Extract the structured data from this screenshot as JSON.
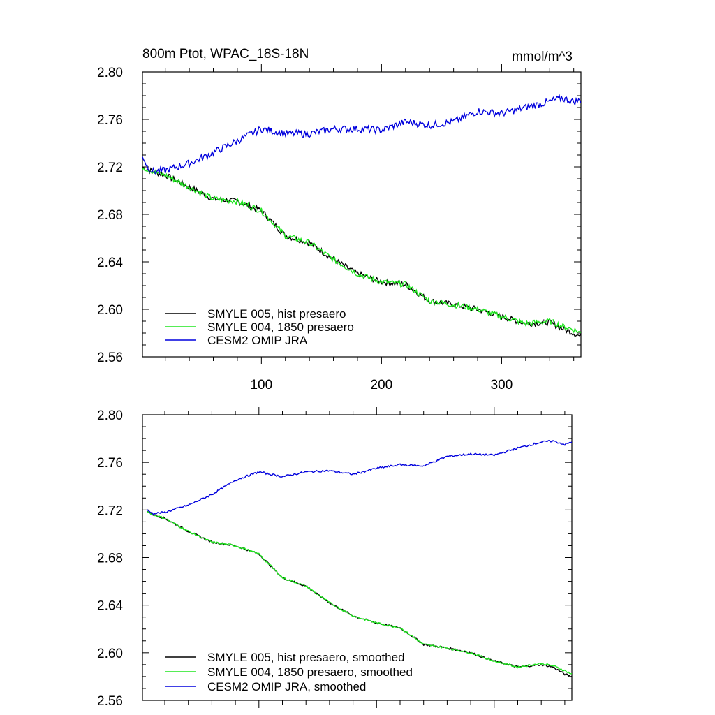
{
  "figure": {
    "title_left": "800m Ptot, WPAC_18S-18N",
    "title_right": "mmol/m^3"
  },
  "colors": {
    "SMYLE 005": "#000000",
    "SMYLE 004": "#1ee61e",
    "CESM2 OMIP": "#0000dd"
  },
  "chart_data": [
    {
      "type": "line",
      "panel": "top",
      "title": "800m Ptot, WPAC_18S-18N",
      "units": "mmol/m^3",
      "xlabel": "",
      "ylabel": "",
      "xlim": [
        1,
        366
      ],
      "ylim": [
        2.56,
        2.8
      ],
      "xticks": [
        100,
        200,
        300
      ],
      "xticklabels": [
        "100",
        "200",
        "300"
      ],
      "yticks": [
        2.56,
        2.6,
        2.64,
        2.68,
        2.72,
        2.76,
        2.8
      ],
      "yticklabels": [
        "2.56",
        "2.60",
        "2.64",
        "2.68",
        "2.72",
        "2.76",
        "2.80"
      ],
      "legend_position": "bottom-left",
      "x": [
        1,
        5,
        10,
        20,
        40,
        60,
        80,
        100,
        120,
        140,
        160,
        180,
        200,
        220,
        240,
        260,
        280,
        300,
        320,
        340,
        350,
        360,
        366
      ],
      "series": [
        {
          "name": "SMYLE 005, hist presaero",
          "color_key": "SMYLE 005",
          "noise": 0.0025,
          "values": [
            2.72,
            2.718,
            2.716,
            2.713,
            2.703,
            2.693,
            2.691,
            2.683,
            2.662,
            2.656,
            2.642,
            2.63,
            2.623,
            2.621,
            2.607,
            2.604,
            2.6,
            2.594,
            2.588,
            2.589,
            2.584,
            2.58,
            2.577
          ]
        },
        {
          "name": "SMYLE 004, 1850 presaero",
          "color_key": "SMYLE 004",
          "noise": 0.0025,
          "values": [
            2.72,
            2.718,
            2.716,
            2.713,
            2.703,
            2.693,
            2.691,
            2.683,
            2.662,
            2.656,
            2.642,
            2.63,
            2.623,
            2.621,
            2.607,
            2.604,
            2.6,
            2.594,
            2.588,
            2.59,
            2.586,
            2.583,
            2.58
          ]
        },
        {
          "name": "CESM2 OMIP JRA",
          "color_key": "CESM2 OMIP",
          "noise": 0.003,
          "values": [
            2.73,
            2.72,
            2.716,
            2.717,
            2.723,
            2.732,
            2.742,
            2.752,
            2.748,
            2.748,
            2.752,
            2.752,
            2.751,
            2.758,
            2.755,
            2.758,
            2.767,
            2.765,
            2.77,
            2.775,
            2.778,
            2.775,
            2.776
          ]
        }
      ]
    },
    {
      "type": "line",
      "panel": "bottom",
      "title": "",
      "xlabel": "",
      "ylabel": "",
      "xlim": [
        1,
        366
      ],
      "ylim": [
        2.56,
        2.8
      ],
      "xticks": [
        100,
        200,
        300
      ],
      "xticklabels": [],
      "yticks": [
        2.56,
        2.6,
        2.64,
        2.68,
        2.72,
        2.76,
        2.8
      ],
      "yticklabels": [
        "2.56",
        "2.60",
        "2.64",
        "2.68",
        "2.72",
        "2.76",
        "2.80"
      ],
      "legend_position": "bottom-left",
      "x": [
        5,
        10,
        20,
        40,
        60,
        80,
        100,
        120,
        140,
        160,
        180,
        200,
        220,
        240,
        260,
        280,
        300,
        320,
        340,
        350,
        360,
        366
      ],
      "series": [
        {
          "name": "SMYLE 005, hist presaero, smoothed",
          "color_key": "SMYLE 005",
          "noise": 0.0008,
          "values": [
            2.719,
            2.716,
            2.713,
            2.702,
            2.693,
            2.69,
            2.683,
            2.663,
            2.656,
            2.642,
            2.631,
            2.625,
            2.621,
            2.607,
            2.604,
            2.6,
            2.593,
            2.588,
            2.59,
            2.588,
            2.582,
            2.58
          ]
        },
        {
          "name": "SMYLE 004, 1850 presaero, smoothed",
          "color_key": "SMYLE 004",
          "noise": 0.0008,
          "values": [
            2.719,
            2.716,
            2.713,
            2.702,
            2.693,
            2.69,
            2.683,
            2.663,
            2.656,
            2.642,
            2.631,
            2.625,
            2.621,
            2.607,
            2.604,
            2.6,
            2.593,
            2.588,
            2.591,
            2.589,
            2.585,
            2.582
          ]
        },
        {
          "name": "CESM2 OMIP JRA, smoothed",
          "color_key": "CESM2 OMIP",
          "noise": 0.0008,
          "values": [
            2.72,
            2.717,
            2.718,
            2.724,
            2.733,
            2.745,
            2.752,
            2.748,
            2.752,
            2.753,
            2.75,
            2.755,
            2.758,
            2.757,
            2.765,
            2.767,
            2.766,
            2.772,
            2.777,
            2.778,
            2.775,
            2.777
          ]
        }
      ]
    }
  ]
}
